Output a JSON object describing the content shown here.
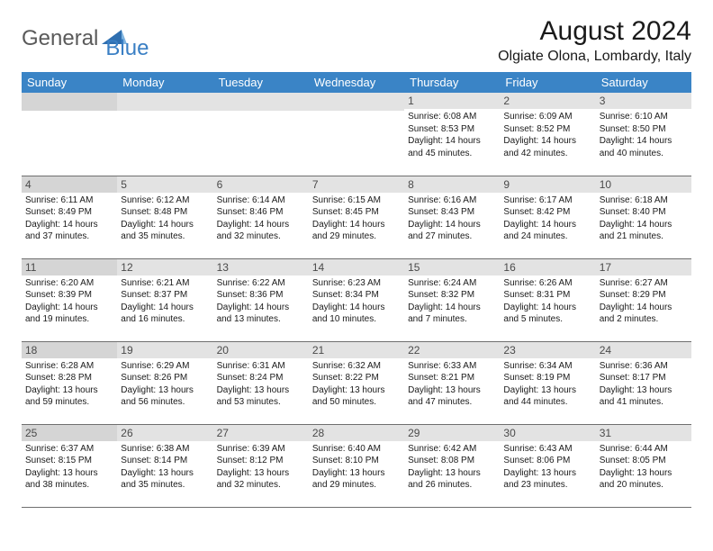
{
  "logo": {
    "text1": "General",
    "text2": "Blue",
    "text1_color": "#5a5a5a",
    "text2_color": "#3a7fc4",
    "icon_color": "#2f6fb0"
  },
  "title": "August 2024",
  "location": "Olgiate Olona, Lombardy, Italy",
  "colors": {
    "header_bg": "#3a84c6",
    "header_text": "#ffffff",
    "daynum_bg": "#e3e3e3",
    "daynum_bg_sunday": "#d5d5d5",
    "daynum_text": "#4a4a4a",
    "body_text": "#1a1a1a",
    "rule": "#6f6f6f",
    "page_bg": "#ffffff"
  },
  "fonts": {
    "month_title_pt": 30,
    "location_pt": 16,
    "dow_pt": 13,
    "daynum_pt": 12,
    "body_pt": 10
  },
  "dow": [
    "Sunday",
    "Monday",
    "Tuesday",
    "Wednesday",
    "Thursday",
    "Friday",
    "Saturday"
  ],
  "weeks": [
    [
      null,
      null,
      null,
      null,
      {
        "n": "1",
        "sunrise": "Sunrise: 6:08 AM",
        "sunset": "Sunset: 8:53 PM",
        "day1": "Daylight: 14 hours",
        "day2": "and 45 minutes."
      },
      {
        "n": "2",
        "sunrise": "Sunrise: 6:09 AM",
        "sunset": "Sunset: 8:52 PM",
        "day1": "Daylight: 14 hours",
        "day2": "and 42 minutes."
      },
      {
        "n": "3",
        "sunrise": "Sunrise: 6:10 AM",
        "sunset": "Sunset: 8:50 PM",
        "day1": "Daylight: 14 hours",
        "day2": "and 40 minutes."
      }
    ],
    [
      {
        "n": "4",
        "sunrise": "Sunrise: 6:11 AM",
        "sunset": "Sunset: 8:49 PM",
        "day1": "Daylight: 14 hours",
        "day2": "and 37 minutes."
      },
      {
        "n": "5",
        "sunrise": "Sunrise: 6:12 AM",
        "sunset": "Sunset: 8:48 PM",
        "day1": "Daylight: 14 hours",
        "day2": "and 35 minutes."
      },
      {
        "n": "6",
        "sunrise": "Sunrise: 6:14 AM",
        "sunset": "Sunset: 8:46 PM",
        "day1": "Daylight: 14 hours",
        "day2": "and 32 minutes."
      },
      {
        "n": "7",
        "sunrise": "Sunrise: 6:15 AM",
        "sunset": "Sunset: 8:45 PM",
        "day1": "Daylight: 14 hours",
        "day2": "and 29 minutes."
      },
      {
        "n": "8",
        "sunrise": "Sunrise: 6:16 AM",
        "sunset": "Sunset: 8:43 PM",
        "day1": "Daylight: 14 hours",
        "day2": "and 27 minutes."
      },
      {
        "n": "9",
        "sunrise": "Sunrise: 6:17 AM",
        "sunset": "Sunset: 8:42 PM",
        "day1": "Daylight: 14 hours",
        "day2": "and 24 minutes."
      },
      {
        "n": "10",
        "sunrise": "Sunrise: 6:18 AM",
        "sunset": "Sunset: 8:40 PM",
        "day1": "Daylight: 14 hours",
        "day2": "and 21 minutes."
      }
    ],
    [
      {
        "n": "11",
        "sunrise": "Sunrise: 6:20 AM",
        "sunset": "Sunset: 8:39 PM",
        "day1": "Daylight: 14 hours",
        "day2": "and 19 minutes."
      },
      {
        "n": "12",
        "sunrise": "Sunrise: 6:21 AM",
        "sunset": "Sunset: 8:37 PM",
        "day1": "Daylight: 14 hours",
        "day2": "and 16 minutes."
      },
      {
        "n": "13",
        "sunrise": "Sunrise: 6:22 AM",
        "sunset": "Sunset: 8:36 PM",
        "day1": "Daylight: 14 hours",
        "day2": "and 13 minutes."
      },
      {
        "n": "14",
        "sunrise": "Sunrise: 6:23 AM",
        "sunset": "Sunset: 8:34 PM",
        "day1": "Daylight: 14 hours",
        "day2": "and 10 minutes."
      },
      {
        "n": "15",
        "sunrise": "Sunrise: 6:24 AM",
        "sunset": "Sunset: 8:32 PM",
        "day1": "Daylight: 14 hours",
        "day2": "and 7 minutes."
      },
      {
        "n": "16",
        "sunrise": "Sunrise: 6:26 AM",
        "sunset": "Sunset: 8:31 PM",
        "day1": "Daylight: 14 hours",
        "day2": "and 5 minutes."
      },
      {
        "n": "17",
        "sunrise": "Sunrise: 6:27 AM",
        "sunset": "Sunset: 8:29 PM",
        "day1": "Daylight: 14 hours",
        "day2": "and 2 minutes."
      }
    ],
    [
      {
        "n": "18",
        "sunrise": "Sunrise: 6:28 AM",
        "sunset": "Sunset: 8:28 PM",
        "day1": "Daylight: 13 hours",
        "day2": "and 59 minutes."
      },
      {
        "n": "19",
        "sunrise": "Sunrise: 6:29 AM",
        "sunset": "Sunset: 8:26 PM",
        "day1": "Daylight: 13 hours",
        "day2": "and 56 minutes."
      },
      {
        "n": "20",
        "sunrise": "Sunrise: 6:31 AM",
        "sunset": "Sunset: 8:24 PM",
        "day1": "Daylight: 13 hours",
        "day2": "and 53 minutes."
      },
      {
        "n": "21",
        "sunrise": "Sunrise: 6:32 AM",
        "sunset": "Sunset: 8:22 PM",
        "day1": "Daylight: 13 hours",
        "day2": "and 50 minutes."
      },
      {
        "n": "22",
        "sunrise": "Sunrise: 6:33 AM",
        "sunset": "Sunset: 8:21 PM",
        "day1": "Daylight: 13 hours",
        "day2": "and 47 minutes."
      },
      {
        "n": "23",
        "sunrise": "Sunrise: 6:34 AM",
        "sunset": "Sunset: 8:19 PM",
        "day1": "Daylight: 13 hours",
        "day2": "and 44 minutes."
      },
      {
        "n": "24",
        "sunrise": "Sunrise: 6:36 AM",
        "sunset": "Sunset: 8:17 PM",
        "day1": "Daylight: 13 hours",
        "day2": "and 41 minutes."
      }
    ],
    [
      {
        "n": "25",
        "sunrise": "Sunrise: 6:37 AM",
        "sunset": "Sunset: 8:15 PM",
        "day1": "Daylight: 13 hours",
        "day2": "and 38 minutes."
      },
      {
        "n": "26",
        "sunrise": "Sunrise: 6:38 AM",
        "sunset": "Sunset: 8:14 PM",
        "day1": "Daylight: 13 hours",
        "day2": "and 35 minutes."
      },
      {
        "n": "27",
        "sunrise": "Sunrise: 6:39 AM",
        "sunset": "Sunset: 8:12 PM",
        "day1": "Daylight: 13 hours",
        "day2": "and 32 minutes."
      },
      {
        "n": "28",
        "sunrise": "Sunrise: 6:40 AM",
        "sunset": "Sunset: 8:10 PM",
        "day1": "Daylight: 13 hours",
        "day2": "and 29 minutes."
      },
      {
        "n": "29",
        "sunrise": "Sunrise: 6:42 AM",
        "sunset": "Sunset: 8:08 PM",
        "day1": "Daylight: 13 hours",
        "day2": "and 26 minutes."
      },
      {
        "n": "30",
        "sunrise": "Sunrise: 6:43 AM",
        "sunset": "Sunset: 8:06 PM",
        "day1": "Daylight: 13 hours",
        "day2": "and 23 minutes."
      },
      {
        "n": "31",
        "sunrise": "Sunrise: 6:44 AM",
        "sunset": "Sunset: 8:05 PM",
        "day1": "Daylight: 13 hours",
        "day2": "and 20 minutes."
      }
    ]
  ]
}
